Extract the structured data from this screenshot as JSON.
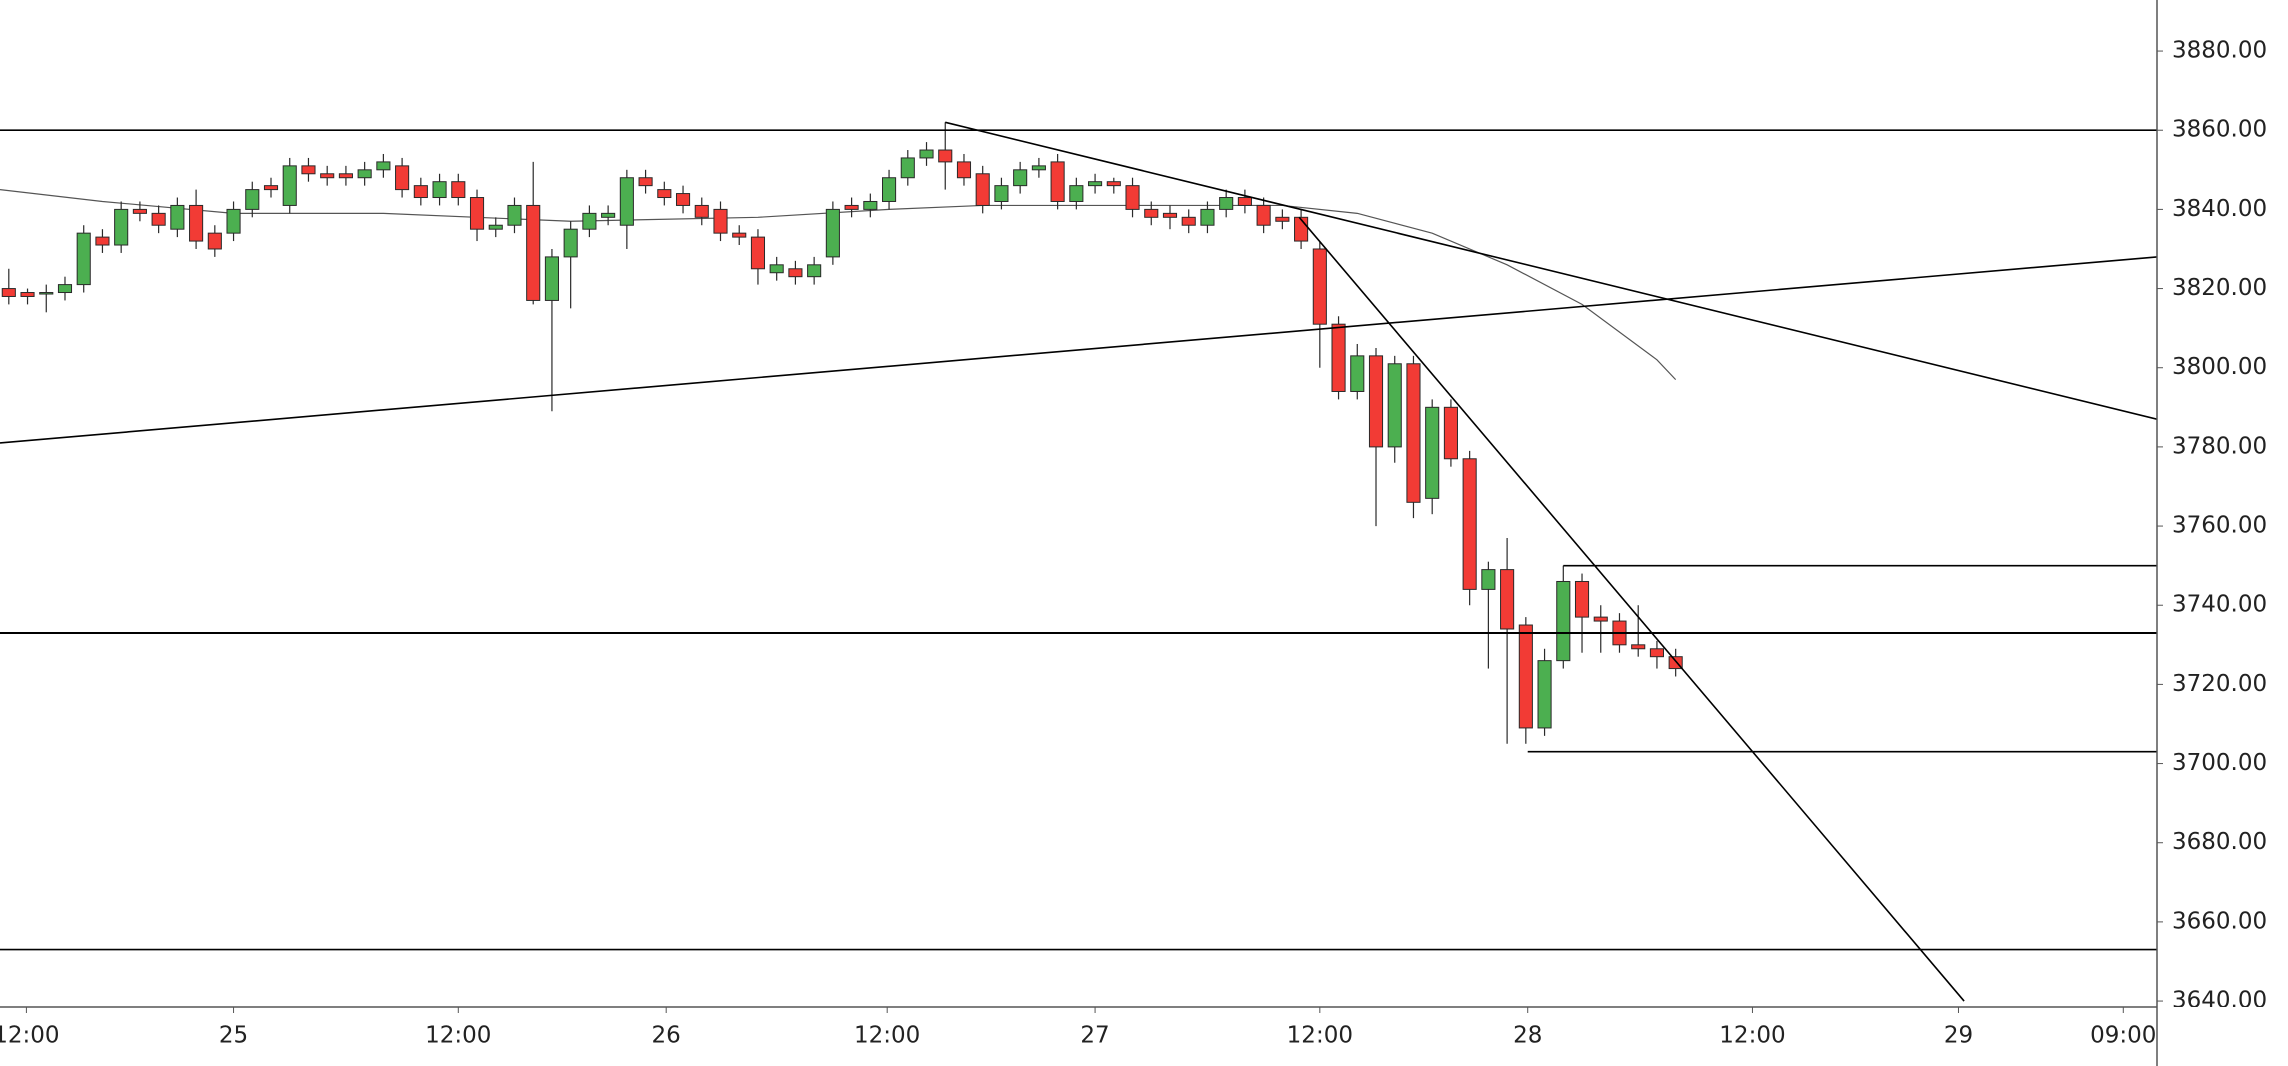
{
  "chart_data": {
    "type": "candlestick",
    "up_color": "#4caf50",
    "down_color": "#f23b35",
    "outline_color": "#2a2a2a",
    "line_color": "#000000",
    "ma_color": "#555555",
    "xlim": [
      -0.47,
      114.7
    ],
    "ylim": [
      3638.5,
      3892.9
    ],
    "yticks": [
      {
        "value": 3640,
        "label": "3640.00"
      },
      {
        "value": 3660,
        "label": "3660.00"
      },
      {
        "value": 3680,
        "label": "3680.00"
      },
      {
        "value": 3700,
        "label": "3700.00"
      },
      {
        "value": 3720,
        "label": "3720.00"
      },
      {
        "value": 3740,
        "label": "3740.00"
      },
      {
        "value": 3760,
        "label": "3760.00"
      },
      {
        "value": 3780,
        "label": "3780.00"
      },
      {
        "value": 3800,
        "label": "3800.00"
      },
      {
        "value": 3820,
        "label": "3820.00"
      },
      {
        "value": 3840,
        "label": "3840.00"
      },
      {
        "value": 3860,
        "label": "3860.00"
      },
      {
        "value": 3880,
        "label": "3880.00"
      }
    ],
    "xticks": [
      {
        "value": 0.94,
        "label": "12:00"
      },
      {
        "value": 12.0,
        "label": "25"
      },
      {
        "value": 24.0,
        "label": "12:00"
      },
      {
        "value": 35.1,
        "label": "26"
      },
      {
        "value": 46.9,
        "label": "12:00"
      },
      {
        "value": 58.0,
        "label": "27"
      },
      {
        "value": 70.0,
        "label": "12:00"
      },
      {
        "value": 81.1,
        "label": "28"
      },
      {
        "value": 93.1,
        "label": "12:00"
      },
      {
        "value": 104.1,
        "label": "29"
      },
      {
        "value": 112.9,
        "label": "09:00"
      }
    ],
    "series": [
      {
        "open": [
          3820,
          3819,
          3819,
          3819,
          3821,
          3833,
          3831,
          3840,
          3839,
          3835,
          3841,
          3834,
          3834,
          3840,
          3846,
          3841,
          3851,
          3849,
          3849,
          3848,
          3850,
          3851,
          3846,
          3843,
          3847,
          3843,
          3835,
          3836,
          3841,
          3817,
          3828,
          3835,
          3838,
          3836,
          3848,
          3845,
          3844,
          3841,
          3840,
          3834,
          3833,
          3824,
          3825,
          3823,
          3828,
          3841,
          3840,
          3842,
          3848,
          3853,
          3855,
          3852,
          3849,
          3842,
          3846,
          3850,
          3852,
          3842,
          3846,
          3847,
          3846,
          3840,
          3839,
          3838,
          3836,
          3840,
          3843,
          3841,
          3838,
          3838,
          3830,
          3811,
          3794,
          3803,
          3780,
          3801,
          3767,
          3790,
          3777,
          3744,
          3749,
          3735,
          3709,
          3726,
          3746,
          3737,
          3736,
          3730,
          3729,
          3727
        ],
        "close": [
          3818,
          3818,
          3819,
          3821,
          3834,
          3831,
          3840,
          3839,
          3836,
          3841,
          3832,
          3830,
          3840,
          3845,
          3845,
          3851,
          3849,
          3848,
          3848,
          3850,
          3852,
          3845,
          3843,
          3847,
          3843,
          3835,
          3836,
          3841,
          3817,
          3828,
          3835,
          3839,
          3839,
          3848,
          3846,
          3843,
          3841,
          3838,
          3834,
          3833,
          3825,
          3826,
          3823,
          3826,
          3840,
          3840,
          3842,
          3848,
          3853,
          3855,
          3852,
          3848,
          3841,
          3846,
          3850,
          3851,
          3842,
          3846,
          3847,
          3846,
          3840,
          3838,
          3838,
          3836,
          3840,
          3843,
          3841,
          3836,
          3837,
          3832,
          3811,
          3794,
          3803,
          3780,
          3801,
          3766,
          3790,
          3777,
          3744,
          3749,
          3734,
          3709,
          3726,
          3746,
          3737,
          3736,
          3730,
          3729,
          3727,
          3724
        ],
        "high": [
          3825,
          3820,
          3821,
          3823,
          3836,
          3835,
          3842,
          3842,
          3841,
          3843,
          3845,
          3836,
          3842,
          3847,
          3848,
          3853,
          3853,
          3851,
          3851,
          3852,
          3854,
          3853,
          3848,
          3849,
          3849,
          3845,
          3838,
          3843,
          3852,
          3830,
          3837,
          3841,
          3841,
          3850,
          3850,
          3847,
          3846,
          3843,
          3842,
          3836,
          3835,
          3828,
          3827,
          3828,
          3842,
          3843,
          3844,
          3850,
          3855,
          3857,
          3862,
          3854,
          3851,
          3848,
          3852,
          3853,
          3854,
          3848,
          3849,
          3848,
          3848,
          3842,
          3841,
          3840,
          3842,
          3845,
          3845,
          3843,
          3840,
          3840,
          3832,
          3813,
          3806,
          3805,
          3803,
          3803,
          3792,
          3792,
          3779,
          3751,
          3757,
          3737,
          3729,
          3750,
          3748,
          3740,
          3738,
          3740,
          3731,
          3729
        ],
        "low": [
          3816,
          3816,
          3814,
          3817,
          3819,
          3829,
          3829,
          3837,
          3834,
          3833,
          3830,
          3828,
          3832,
          3838,
          3843,
          3839,
          3847,
          3846,
          3846,
          3846,
          3848,
          3843,
          3841,
          3841,
          3841,
          3832,
          3833,
          3834,
          3816,
          3789,
          3815,
          3833,
          3836,
          3830,
          3844,
          3841,
          3839,
          3836,
          3832,
          3831,
          3821,
          3822,
          3821,
          3821,
          3826,
          3838,
          3838,
          3840,
          3846,
          3851,
          3845,
          3846,
          3839,
          3840,
          3844,
          3848,
          3840,
          3840,
          3844,
          3844,
          3838,
          3836,
          3835,
          3834,
          3834,
          3838,
          3839,
          3834,
          3835,
          3830,
          3800,
          3792,
          3792,
          3760,
          3776,
          3762,
          3763,
          3775,
          3740,
          3724,
          3705,
          3705,
          3707,
          3724,
          3728,
          3728,
          3728,
          3727,
          3724,
          3722
        ]
      }
    ],
    "ma": {
      "x": [
        -0.47,
        5,
        12,
        20,
        30,
        40,
        47,
        52,
        60,
        68,
        72,
        76,
        80,
        84,
        88,
        89
      ],
      "values": [
        3845,
        3842,
        3839,
        3839,
        3837,
        3838,
        3840,
        3841,
        3841,
        3841,
        3839,
        3834,
        3826,
        3816,
        3802,
        3797
      ]
    },
    "lines": [
      {
        "x": [
          -0.47,
          114.7
        ],
        "y": [
          3860,
          3860
        ]
      },
      {
        "x": [
          -0.47,
          114.7
        ],
        "y": [
          3733,
          3733
        ],
        "width": 2
      },
      {
        "x": [
          -0.47,
          114.7
        ],
        "y": [
          3653,
          3653
        ]
      },
      {
        "x": [
          -0.47,
          114.7
        ],
        "y": [
          3781,
          3828
        ]
      },
      {
        "x": [
          50.0,
          114.7
        ],
        "y": [
          3862,
          3787
        ]
      },
      {
        "x": [
          68.9,
          104.4
        ],
        "y": [
          3838,
          3640
        ]
      },
      {
        "x": [
          83.0,
          114.7
        ],
        "y": [
          3750,
          3750
        ]
      },
      {
        "x": [
          81.1,
          114.7
        ],
        "y": [
          3703,
          3703
        ]
      }
    ]
  }
}
